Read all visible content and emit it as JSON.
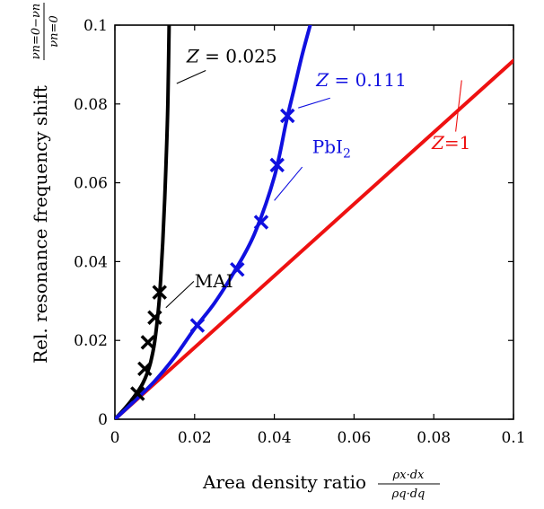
{
  "chart_data": {
    "type": "line",
    "xlabel": "Area density ratio",
    "xlabel_fraction": {
      "num": "ρx·dx",
      "den": "ρq·dq"
    },
    "ylabel": "Rel. resonance frequency shift",
    "ylabel_fraction": {
      "num": "νn=0−νn",
      "den": "νn=0"
    },
    "xlim": [
      0,
      0.1
    ],
    "ylim": [
      0,
      0.1
    ],
    "xticks": [
      "0",
      "0.02",
      "0.04",
      "0.06",
      "0.08",
      "0.1"
    ],
    "yticks": [
      "0",
      "0.02",
      "0.04",
      "0.06",
      "0.08",
      "0.1"
    ],
    "xtick_values": [
      0,
      0.02,
      0.04,
      0.06,
      0.08,
      0.1
    ],
    "ytick_values": [
      0,
      0.02,
      0.04,
      0.06,
      0.08,
      0.1
    ],
    "grid": false,
    "series": [
      {
        "label": "Z = 0.025",
        "color": "#000000",
        "kind": "curve",
        "x": [
          0,
          0.002,
          0.004,
          0.006,
          0.007,
          0.008,
          0.009,
          0.01,
          0.011,
          0.0115,
          0.012,
          0.0125,
          0.013,
          0.0133,
          0.0136
        ],
        "y": [
          0,
          0.0022,
          0.0046,
          0.0074,
          0.0091,
          0.0114,
          0.0146,
          0.0198,
          0.0288,
          0.0358,
          0.0448,
          0.056,
          0.07,
          0.081,
          0.1
        ]
      },
      {
        "label": "Z = 0.111",
        "color": "#1010e0",
        "kind": "curve",
        "x": [
          0,
          0.005,
          0.01,
          0.015,
          0.02,
          0.025,
          0.03,
          0.035,
          0.04,
          0.043,
          0.045,
          0.047,
          0.049
        ],
        "y": [
          0,
          0.0047,
          0.0097,
          0.0158,
          0.023,
          0.0295,
          0.0375,
          0.047,
          0.0615,
          0.0755,
          0.084,
          0.0925,
          0.1
        ]
      },
      {
        "label": "Z=1",
        "color": "#ee1111",
        "kind": "curve",
        "x": [
          0,
          0.1
        ],
        "y": [
          0,
          0.091
        ]
      },
      {
        "label": "MAI",
        "color": "#000000",
        "kind": "markers",
        "x": [
          0.0057,
          0.0075,
          0.0083,
          0.01,
          0.0112
        ],
        "y": [
          0.0065,
          0.0128,
          0.0195,
          0.0258,
          0.0322
        ]
      },
      {
        "label": "PbI2",
        "color": "#1010e0",
        "kind": "markers",
        "x": [
          0.0207,
          0.0307,
          0.0367,
          0.0407,
          0.0433
        ],
        "y": [
          0.0238,
          0.038,
          0.05,
          0.0645,
          0.077
        ]
      }
    ],
    "annotations": [
      {
        "text": "Z = 0.025",
        "var": "Z",
        "rest": " = 0.025",
        "color": "#000000",
        "at": [
          0.018,
          0.0905
        ],
        "leader": [
          [
            0.0155,
            0.0852
          ],
          [
            0.0158,
            0.0868
          ],
          [
            0.0228,
            0.0885
          ]
        ]
      },
      {
        "text": "Z = 0.111",
        "var": "Z",
        "rest": " = 0.111",
        "color": "#1010e0",
        "at": [
          0.0505,
          0.0845
        ],
        "leader": [
          [
            0.046,
            0.079
          ],
          [
            0.046,
            0.079
          ],
          [
            0.054,
            0.0815
          ]
        ]
      },
      {
        "text": "PbI2",
        "color": "#1010e0",
        "at": [
          0.0495,
          0.0675
        ],
        "leader": [
          [
            0.04,
            0.0555
          ],
          [
            0.04,
            0.0555
          ],
          [
            0.047,
            0.064
          ]
        ]
      },
      {
        "text": "Z=1",
        "var": "Z",
        "rest": "=1",
        "color": "#ee1111",
        "at": [
          0.0795,
          0.0686
        ],
        "leader": [
          [
            0.0855,
            0.073
          ],
          [
            0.0855,
            0.073
          ],
          [
            0.087,
            0.086
          ]
        ]
      },
      {
        "text": "MAI",
        "color": "#000000",
        "at": [
          0.02,
          0.0335
        ],
        "leader": [
          [
            0.0128,
            0.0283
          ],
          [
            0.0128,
            0.0283
          ],
          [
            0.0198,
            0.035
          ]
        ]
      }
    ]
  }
}
